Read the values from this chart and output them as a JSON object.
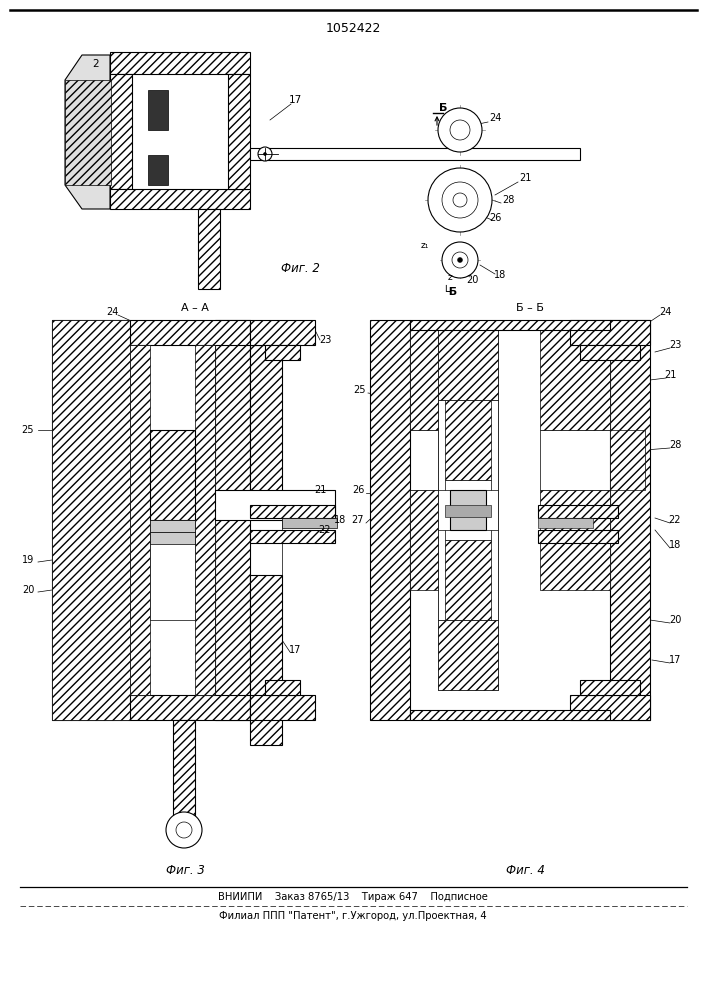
{
  "patent_number": "1052422",
  "footer_line1": "ВНИИПИ    Заказ 8765/13    Тираж 647    Подписное",
  "footer_line2": "Филиал ППП \"Патент\", г.Ужгород, ул.Проектная, 4",
  "bg_color": "#ffffff",
  "fig_width": 7.07,
  "fig_height": 10.0,
  "dpi": 100
}
